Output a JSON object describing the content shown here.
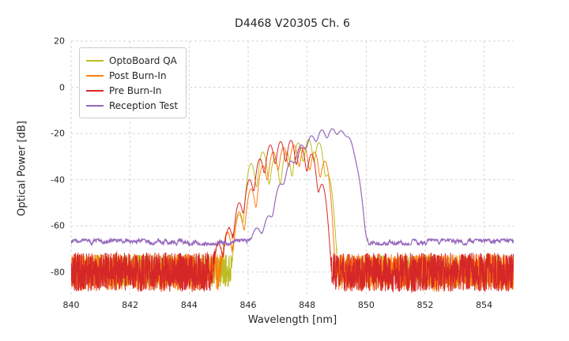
{
  "title": "D4468 V20305 Ch. 6",
  "axes": {
    "xlabel": "Wavelength [nm]",
    "ylabel": "Optical Power [dB]"
  },
  "chart_data": {
    "type": "line",
    "title": "D4468 V20305 Ch. 6",
    "xlabel": "Wavelength [nm]",
    "ylabel": "Optical Power [dB]",
    "xlim": [
      840,
      855
    ],
    "ylim": [
      -90,
      20
    ],
    "xticks": [
      840,
      842,
      844,
      846,
      848,
      850,
      852,
      854
    ],
    "yticks": [
      20,
      0,
      -20,
      -40,
      -60,
      -80
    ],
    "grid": true,
    "grid_color": "#cccccc",
    "legend_position": "upper left",
    "description": "Optical spectra of VCSEL channel 6 at four test stages; multimode peaks between ~845 and ~849.7 nm over a noise floor.",
    "series": [
      {
        "name": "OptoBoard QA",
        "color": "#bcbd22",
        "line_width": 1,
        "noise": {
          "kind": "spiky",
          "top_db": -72.5,
          "span_db": 14,
          "seed": 11
        },
        "mode_width_nm": 0.075,
        "modes": [
          [
            845.7,
            -55
          ],
          [
            846.1,
            -33
          ],
          [
            846.5,
            -28
          ],
          [
            846.9,
            -31
          ],
          [
            847.3,
            -28
          ],
          [
            847.7,
            -24
          ],
          [
            848.05,
            -22.5
          ],
          [
            848.4,
            -24
          ],
          [
            848.7,
            -38
          ]
        ]
      },
      {
        "name": "Post Burn-In",
        "color": "#ff7f0e",
        "line_width": 1,
        "noise": {
          "kind": "spiky",
          "top_db": -72,
          "span_db": 16,
          "seed": 5
        },
        "mode_width_nm": 0.075,
        "modes": [
          [
            845.3,
            -63
          ],
          [
            845.7,
            -54
          ],
          [
            846.1,
            -44
          ],
          [
            846.5,
            -34
          ],
          [
            846.85,
            -28
          ],
          [
            847.2,
            -26
          ],
          [
            847.55,
            -25
          ],
          [
            847.9,
            -26
          ],
          [
            848.25,
            -28
          ],
          [
            848.6,
            -32
          ]
        ]
      },
      {
        "name": "Pre Burn-In",
        "color": "#d62728",
        "line_width": 1,
        "noise": {
          "kind": "spiky",
          "top_db": -71.5,
          "span_db": 17,
          "seed": 2
        },
        "mode_width_nm": 0.075,
        "modes": [
          [
            845.0,
            -68
          ],
          [
            845.35,
            -61
          ],
          [
            845.7,
            -50
          ],
          [
            846.05,
            -40
          ],
          [
            846.4,
            -31
          ],
          [
            846.75,
            -25
          ],
          [
            847.1,
            -23.5
          ],
          [
            847.45,
            -23
          ],
          [
            847.8,
            -26
          ],
          [
            848.15,
            -29
          ],
          [
            848.5,
            -42
          ]
        ]
      },
      {
        "name": "Reception Test",
        "color": "#9467bd",
        "line_width": 1.2,
        "noise": {
          "kind": "smooth",
          "top_db": -67,
          "span_db": 2.4,
          "seed": 9
        },
        "mode_width_nm": 0.1,
        "modes": [
          [
            846.3,
            -62
          ],
          [
            846.7,
            -56
          ],
          [
            847.1,
            -42
          ],
          [
            847.45,
            -32
          ],
          [
            847.8,
            -25
          ],
          [
            848.15,
            -21
          ],
          [
            848.5,
            -18.5
          ],
          [
            848.85,
            -18
          ],
          [
            849.15,
            -19
          ],
          [
            849.4,
            -22
          ],
          [
            849.6,
            -34
          ]
        ]
      }
    ]
  }
}
